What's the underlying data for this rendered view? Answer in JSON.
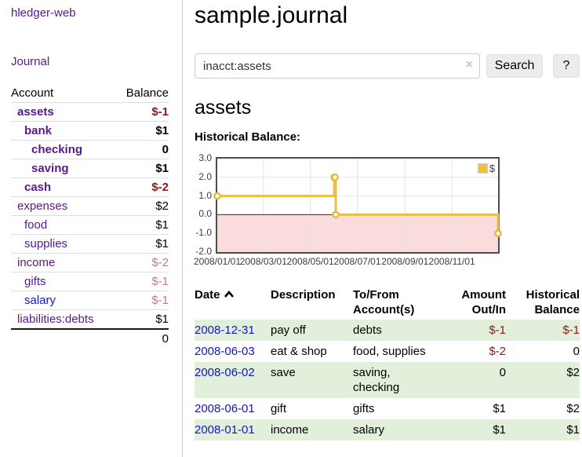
{
  "app": {
    "title": "hledger-web"
  },
  "sidebar": {
    "journal_link": "Journal",
    "accounts": {
      "headers": [
        "Account",
        "Balance"
      ],
      "rows": [
        {
          "name": "assets",
          "level": 0,
          "balance": "$-1",
          "bold": true,
          "name_color": "purple"
        },
        {
          "name": "bank",
          "level": 1,
          "balance": "$1",
          "bold": true,
          "name_color": "purple"
        },
        {
          "name": "checking",
          "level": 2,
          "balance": "0",
          "bold": true,
          "name_color": "purple"
        },
        {
          "name": "saving",
          "level": 2,
          "balance": "$1",
          "bold": true,
          "name_color": "purple"
        },
        {
          "name": "cash",
          "level": 1,
          "balance": "$-2",
          "bold": true,
          "name_color": "purple"
        },
        {
          "name": "expenses",
          "level": 0,
          "balance": "$2",
          "bold": false,
          "name_color": "purple"
        },
        {
          "name": "food",
          "level": 1,
          "balance": "$1",
          "bold": false,
          "name_color": "purple"
        },
        {
          "name": "supplies",
          "level": 1,
          "balance": "$1",
          "bold": false,
          "name_color": "purple"
        },
        {
          "name": "income",
          "level": 0,
          "balance": "$-2",
          "bold": false,
          "name_color": "purple"
        },
        {
          "name": "gifts",
          "level": 1,
          "balance": "$-1",
          "bold": false,
          "name_color": "purple"
        },
        {
          "name": "salary",
          "level": 1,
          "balance": "$-1",
          "bold": false,
          "name_color": "blue"
        },
        {
          "name": "liabilities:debts",
          "level": 0,
          "balance": "$1",
          "bold": false,
          "name_color": "purple"
        }
      ],
      "total": "0"
    }
  },
  "header": {
    "title": "sample.journal"
  },
  "search": {
    "value": "inacct:assets",
    "clear_icon": "×",
    "button_label": "Search",
    "help_label": "?"
  },
  "account_page": {
    "heading": "assets",
    "chart_label": "Historical Balance:"
  },
  "chart_data": {
    "type": "line",
    "title": "Historical Balance",
    "step": true,
    "series": [
      {
        "name": "$",
        "color": "#edc240",
        "points": [
          [
            "2008-01-01",
            1
          ],
          [
            "2008-06-01",
            2
          ],
          [
            "2008-06-02",
            2
          ],
          [
            "2008-06-03",
            0
          ],
          [
            "2008-12-31",
            -1
          ]
        ]
      }
    ],
    "xlim": [
      "2008-01-01",
      "2008-12-31"
    ],
    "ylim": [
      -2,
      3
    ],
    "x_tick_labels": [
      "2008/01/01",
      "2008/03/01",
      "2008/05/01",
      "2008/07/01",
      "2008/09/01",
      "2008/11/01"
    ],
    "y_tick_labels": [
      "3.0",
      "2.0",
      "1.0",
      "0.0",
      "-1.0",
      "-2.0"
    ],
    "y_tick_values": [
      3,
      2,
      1,
      0,
      -1,
      -2
    ],
    "grid": true,
    "legend_position": "top-right",
    "negative_region_color": "#fadcdc",
    "zero_line_color": "#990000"
  },
  "register": {
    "headers": {
      "date": "Date",
      "description": "Description",
      "accounts": "To/From Account(s)",
      "amount": "Amount Out/In",
      "balance": "Historical Balance"
    },
    "rows": [
      {
        "date": "2008-12-31",
        "description": "pay off",
        "accounts": "debts",
        "amount": "$-1",
        "balance": "$-1"
      },
      {
        "date": "2008-06-03",
        "description": "eat & shop",
        "accounts": "food, supplies",
        "amount": "$-2",
        "balance": "0"
      },
      {
        "date": "2008-06-02",
        "description": "save",
        "accounts": "saving, checking",
        "amount": "0",
        "balance": "$2"
      },
      {
        "date": "2008-06-01",
        "description": "gift",
        "accounts": "gifts",
        "amount": "$1",
        "balance": "$2"
      },
      {
        "date": "2008-01-01",
        "description": "income",
        "accounts": "salary",
        "amount": "$1",
        "balance": "$1"
      }
    ]
  }
}
